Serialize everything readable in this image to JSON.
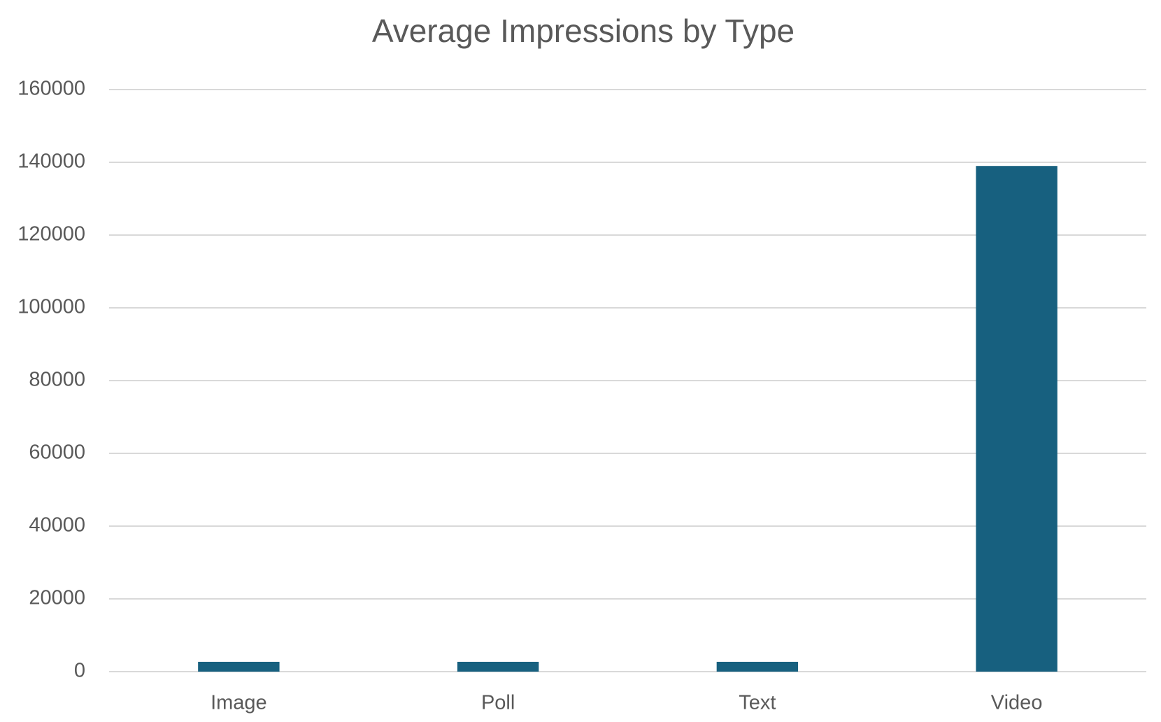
{
  "chart_data": {
    "type": "bar",
    "title": "Average Impressions by Type",
    "categories": [
      "Image",
      "Poll",
      "Text",
      "Video"
    ],
    "values": [
      2700,
      2700,
      2700,
      139000
    ],
    "color": "#17607f",
    "ylim": [
      0,
      160000
    ],
    "yticks": [
      0,
      20000,
      40000,
      60000,
      80000,
      100000,
      120000,
      140000,
      160000
    ],
    "grid": true
  }
}
